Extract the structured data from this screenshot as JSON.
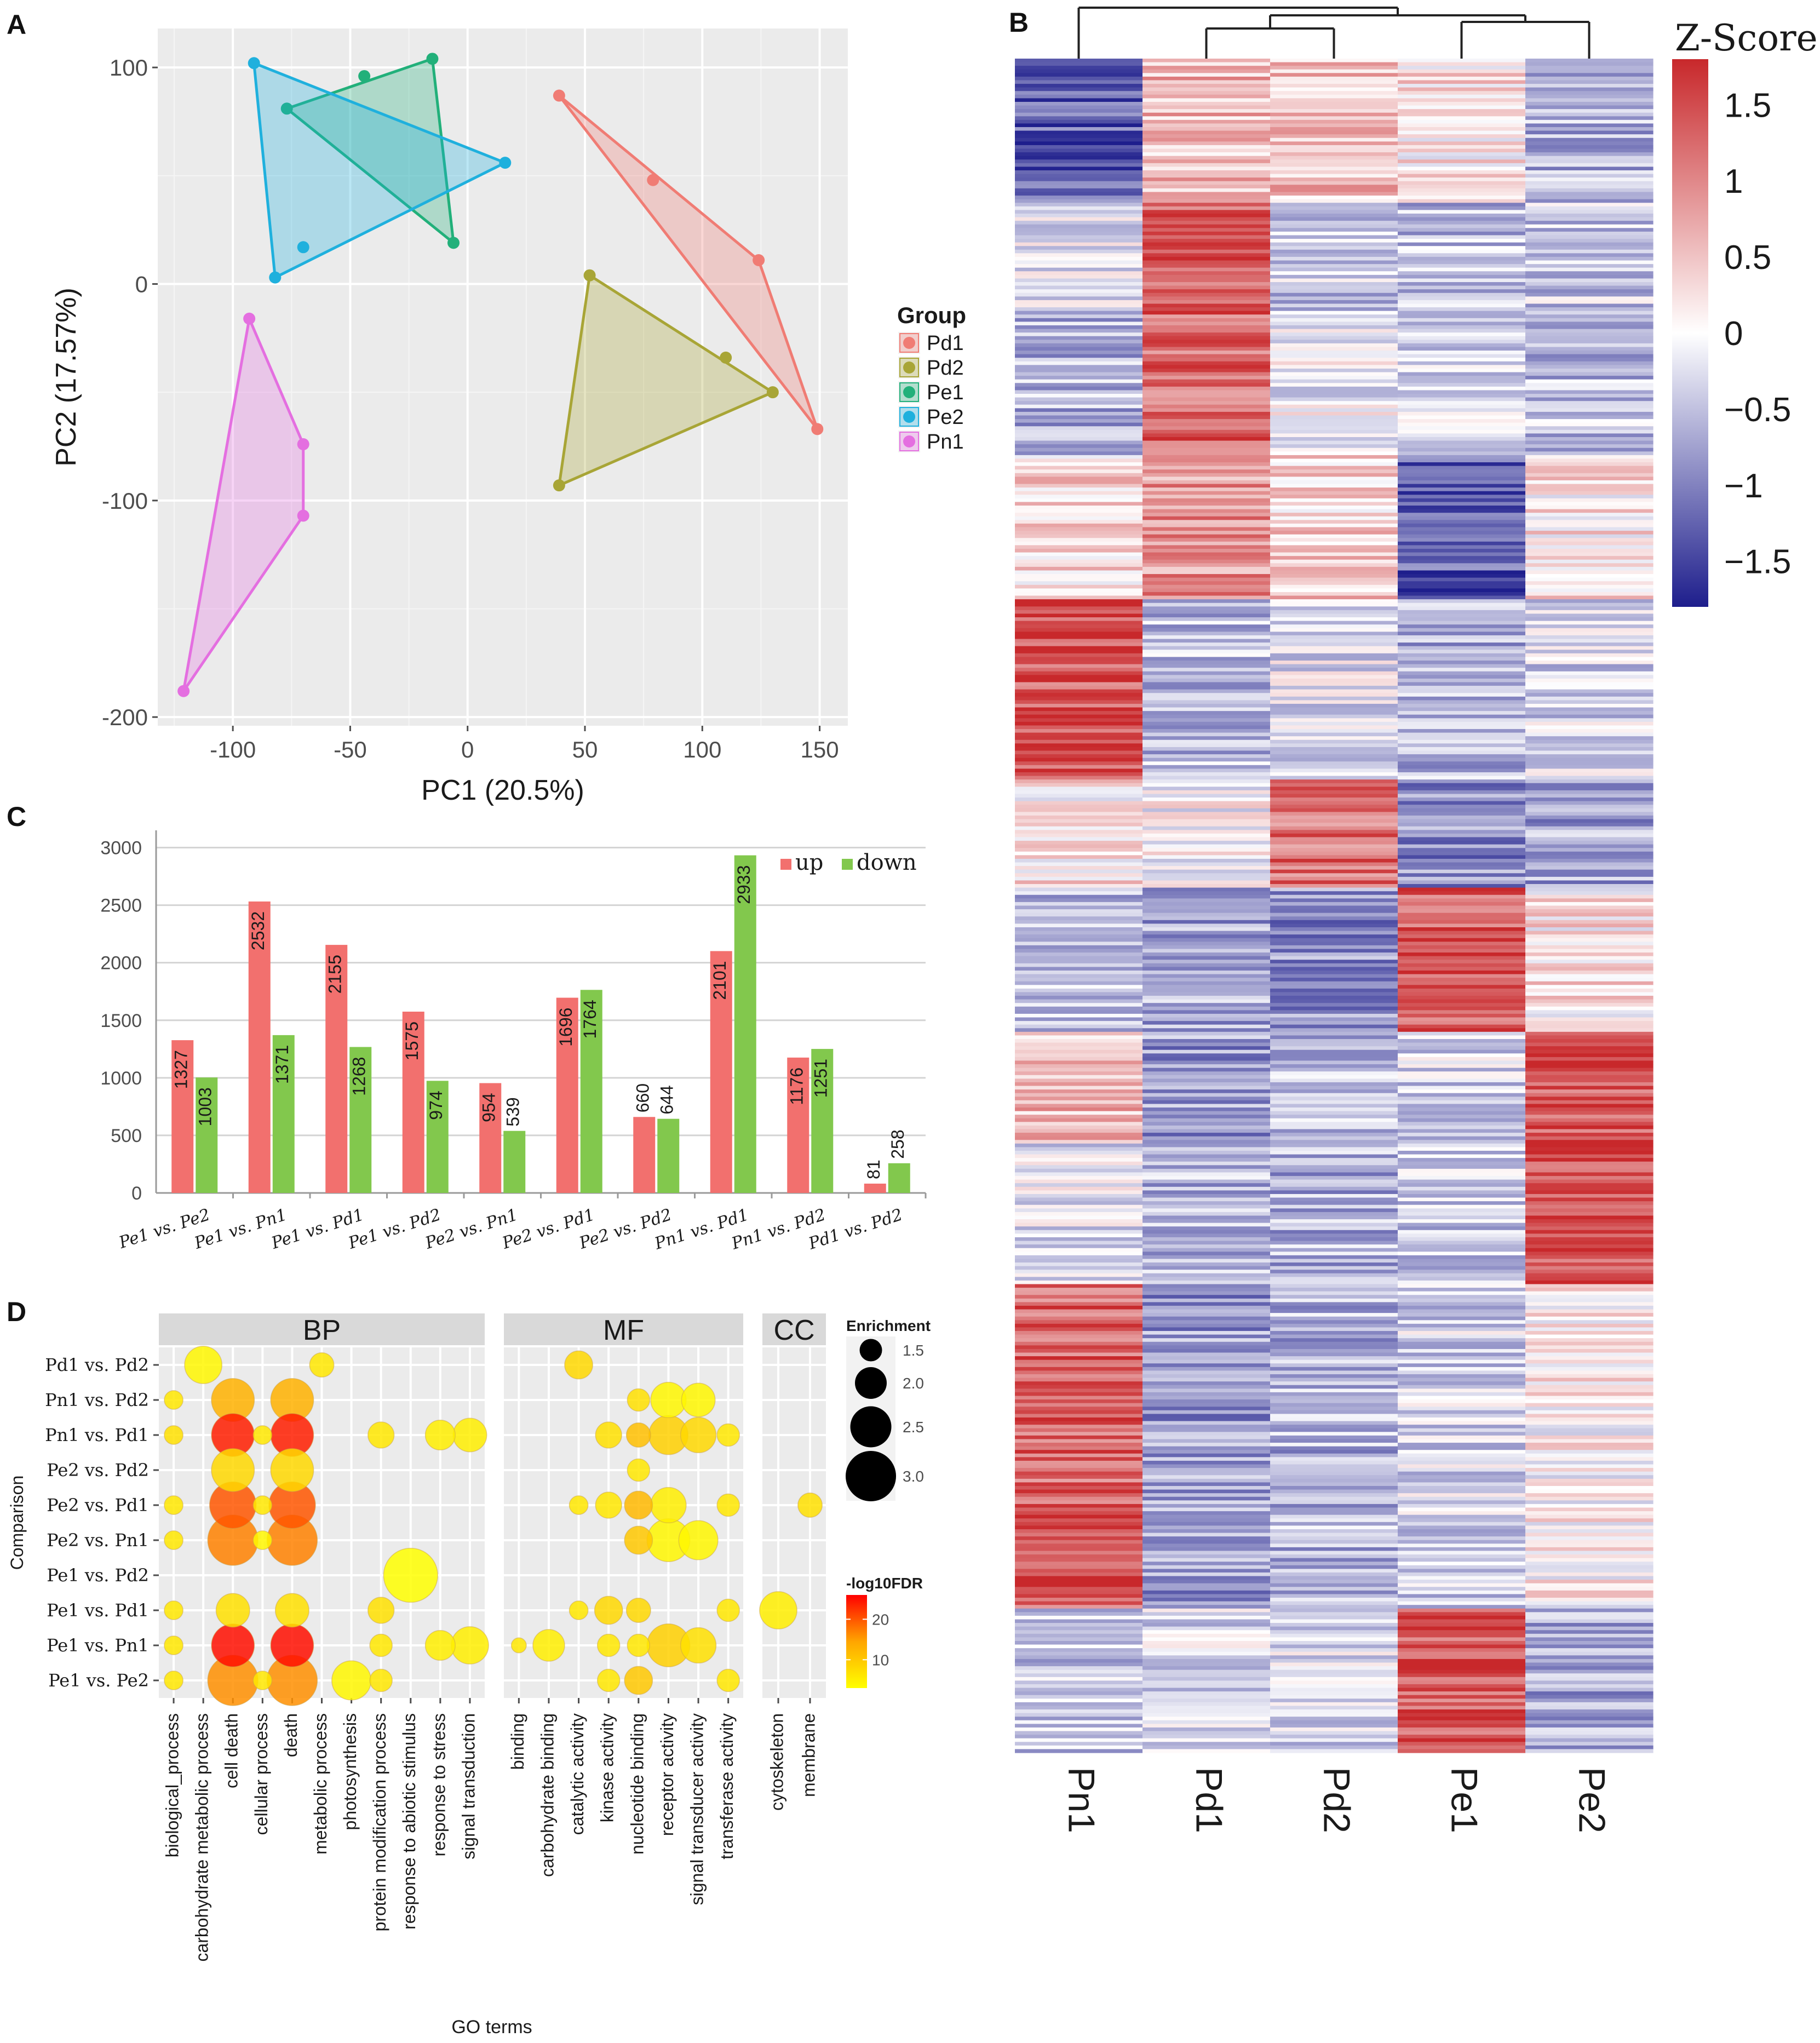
{
  "figure": {
    "panel_labels": [
      "A",
      "B",
      "C",
      "D"
    ]
  },
  "colors": {
    "Pd1": "#f07c74",
    "Pd2": "#a8a536",
    "Pe1": "#22b07a",
    "Pe2": "#1fb0dd",
    "Pn1": "#e46fe0",
    "up": "#f2706e",
    "down": "#82c84d",
    "heat_low": "#1e1e8c",
    "heat_mid": "#ffffff",
    "heat_high": "#c8282b",
    "grid_bg": "#ebebeb",
    "strip_bg": "#d9d9d9"
  },
  "chart_data": [
    {
      "id": "A",
      "type": "scatter",
      "xlabel": "PC1 (20.5%)",
      "ylabel": "PC2 (17.57%)",
      "xlim": [
        -132,
        162
      ],
      "ylim": [
        -204,
        118
      ],
      "xticks": [
        -100,
        -50,
        0,
        50,
        100,
        150
      ],
      "yticks": [
        -200,
        -100,
        0,
        100
      ],
      "xtick_labels": [
        "-100",
        "-50",
        "0",
        "50",
        "100",
        "150"
      ],
      "ytick_labels": [
        "-200",
        "-100",
        "0",
        "100"
      ],
      "legend_title": "Group",
      "legend_position": "right",
      "series": [
        {
          "name": "Pd1",
          "points": [
            [
              39,
              87
            ],
            [
              79,
              48
            ],
            [
              124,
              11
            ],
            [
              149,
              -67
            ]
          ],
          "hull": [
            [
              39,
              87
            ],
            [
              124,
              11
            ],
            [
              149,
              -67
            ]
          ]
        },
        {
          "name": "Pd2",
          "points": [
            [
              52,
              4
            ],
            [
              110,
              -34
            ],
            [
              130,
              -50
            ],
            [
              39,
              -93
            ]
          ],
          "hull": [
            [
              52,
              4
            ],
            [
              130,
              -50
            ],
            [
              39,
              -93
            ]
          ]
        },
        {
          "name": "Pe1",
          "points": [
            [
              -15,
              104
            ],
            [
              -44,
              96
            ],
            [
              -77,
              81
            ],
            [
              -6,
              19
            ]
          ],
          "hull": [
            [
              -15,
              104
            ],
            [
              -77,
              81
            ],
            [
              -6,
              19
            ]
          ]
        },
        {
          "name": "Pe2",
          "points": [
            [
              -91,
              102
            ],
            [
              16,
              56
            ],
            [
              -70,
              17
            ],
            [
              -82,
              3
            ]
          ],
          "hull": [
            [
              -91,
              102
            ],
            [
              16,
              56
            ],
            [
              -82,
              3
            ]
          ]
        },
        {
          "name": "Pn1",
          "points": [
            [
              -93,
              -16
            ],
            [
              -70,
              -74
            ],
            [
              -70,
              -107
            ],
            [
              -121,
              -188
            ]
          ],
          "hull": [
            [
              -93,
              -16
            ],
            [
              -70,
              -74
            ],
            [
              -70,
              -107
            ],
            [
              -121,
              -188
            ]
          ]
        }
      ]
    },
    {
      "id": "B",
      "type": "heatmap",
      "title": "Z-Score",
      "columns": [
        "Pn1",
        "Pd1",
        "Pd2",
        "Pe1",
        "Pe2"
      ],
      "colorbar_ticks": [
        1.5,
        1,
        0.5,
        0,
        -0.5,
        -1,
        -1.5
      ],
      "colorbar_tick_labels": [
        "1.5",
        "1",
        "0.5",
        "0",
        "−0.5",
        "−1",
        "−1.5"
      ],
      "colorbar_range": [
        -1.8,
        1.8
      ],
      "dendrogram": "((Pn1),((Pd1,Pd2),(Pe1,Pe2)))",
      "row_blocks": [
        {
          "rows": 40,
          "values": [
            -1.3,
            0.6,
            0.5,
            0.2,
            -0.6
          ]
        },
        {
          "rows": 30,
          "values": [
            -0.2,
            1.4,
            -0.4,
            -0.5,
            -0.4
          ]
        },
        {
          "rows": 40,
          "values": [
            -0.6,
            1.3,
            -0.1,
            -0.3,
            -0.5
          ]
        },
        {
          "rows": 40,
          "values": [
            0.3,
            0.9,
            0.4,
            -1.3,
            0.2
          ]
        },
        {
          "rows": 50,
          "values": [
            1.4,
            -0.5,
            -0.2,
            -0.6,
            -0.3
          ]
        },
        {
          "rows": 30,
          "values": [
            0.2,
            0.0,
            1.2,
            -0.9,
            -0.7
          ]
        },
        {
          "rows": 40,
          "values": [
            -0.5,
            -0.7,
            -0.9,
            1.4,
            0.2
          ]
        },
        {
          "rows": 30,
          "values": [
            0.6,
            -0.8,
            -0.5,
            -0.3,
            1.4
          ]
        },
        {
          "rows": 40,
          "values": [
            -0.2,
            -0.6,
            -0.6,
            -0.4,
            1.5
          ]
        },
        {
          "rows": 90,
          "values": [
            1.3,
            -0.8,
            -0.6,
            -0.3,
            0.1
          ]
        },
        {
          "rows": 40,
          "values": [
            -0.4,
            -0.3,
            -0.3,
            1.4,
            -0.7
          ]
        }
      ]
    },
    {
      "id": "C",
      "type": "bar",
      "categories": [
        "Pe1 vs. Pe2",
        "Pe1 vs. Pn1",
        "Pe1 vs. Pd1",
        "Pe1 vs. Pd2",
        "Pe2 vs. Pn1",
        "Pe2 vs. Pd1",
        "Pe2 vs. Pd2",
        "Pn1 vs. Pd1",
        "Pn1 vs. Pd2",
        "Pd1 vs. Pd2"
      ],
      "series": [
        {
          "name": "up",
          "values": [
            1327,
            2532,
            2155,
            1575,
            954,
            1696,
            660,
            2101,
            1176,
            81
          ]
        },
        {
          "name": "down",
          "values": [
            1003,
            1371,
            1268,
            974,
            539,
            1764,
            644,
            2933,
            1251,
            258
          ]
        }
      ],
      "ylim": [
        0,
        3150
      ],
      "yticks": [
        0,
        500,
        1000,
        1500,
        2000,
        2500,
        3000
      ],
      "ytick_labels": [
        "0",
        "500",
        "1000",
        "1500",
        "2000",
        "2500",
        "3000"
      ],
      "value_labels_up": [
        "1327",
        "2532",
        "2155",
        "1575",
        "954",
        "1696",
        "660",
        "2101",
        "1176",
        "81"
      ],
      "value_labels_down": [
        "1003",
        "1371",
        "1268",
        "974",
        "539",
        "1764",
        "644",
        "2933",
        "1251",
        "258"
      ],
      "legend_position": "top-right"
    },
    {
      "id": "D",
      "type": "scatter",
      "xlabel": "GO terms",
      "ylabel": "Comparison",
      "facets": [
        {
          "name": "BP",
          "terms": [
            "biological_process",
            "carbohydrate metabolic process",
            "cell death",
            "cellular process",
            "death",
            "metabolic process",
            "photosynthesis",
            "protein modification process",
            "response to abiotic stimulus",
            "response to stress",
            "signal transduction"
          ]
        },
        {
          "name": "MF",
          "terms": [
            "binding",
            "carbohydrate binding",
            "catalytic activity",
            "kinase activity",
            "nucleotide binding",
            "receptor activity",
            "signal transducer activity",
            "transferase activity"
          ]
        },
        {
          "name": "CC",
          "terms": [
            "cytoskeleton",
            "membrane"
          ]
        }
      ],
      "comparisons": [
        "Pd1 vs. Pd2",
        "Pn1 vs. Pd2",
        "Pn1 vs. Pd1",
        "Pe2 vs. Pd2",
        "Pe2 vs. Pd1",
        "Pe2 vs. Pn1",
        "Pe1 vs. Pd2",
        "Pe1 vs. Pd1",
        "Pe1 vs. Pn1",
        "Pe1 vs. Pe2"
      ],
      "size_legend_title": "Enrichment",
      "size_legend_values": [
        1.5,
        2.0,
        2.5,
        3.0
      ],
      "size_legend_labels": [
        "1.5",
        "2.0",
        "2.5",
        "3.0"
      ],
      "color_legend_title": "-log10FDR",
      "color_legend_ticks": [
        20,
        10
      ],
      "color_legend_labels": [
        "20",
        "10"
      ],
      "color_range": [
        3,
        26
      ],
      "points": [
        {
          "comp": "Pd1 vs. Pd2",
          "term": "carbohydrate metabolic process",
          "enrich": 2.3,
          "fdr": 4
        },
        {
          "comp": "Pd1 vs. Pd2",
          "term": "metabolic process",
          "enrich": 1.6,
          "fdr": 6
        },
        {
          "comp": "Pd1 vs. Pd2",
          "term": "catalytic activity",
          "enrich": 1.8,
          "fdr": 8
        },
        {
          "comp": "Pn1 vs. Pd2",
          "term": "biological_process",
          "enrich": 1.3,
          "fdr": 6
        },
        {
          "comp": "Pn1 vs. Pd2",
          "term": "cell death",
          "enrich": 2.6,
          "fdr": 13
        },
        {
          "comp": "Pn1 vs. Pd2",
          "term": "death",
          "enrich": 2.6,
          "fdr": 13
        },
        {
          "comp": "Pn1 vs. Pd2",
          "term": "nucleotide binding",
          "enrich": 1.5,
          "fdr": 7
        },
        {
          "comp": "Pn1 vs. Pd2",
          "term": "receptor activity",
          "enrich": 2.2,
          "fdr": 4
        },
        {
          "comp": "Pn1 vs. Pd2",
          "term": "signal transducer activity",
          "enrich": 2.1,
          "fdr": 4
        },
        {
          "comp": "Pn1 vs. Pd1",
          "term": "biological_process",
          "enrich": 1.3,
          "fdr": 7
        },
        {
          "comp": "Pn1 vs. Pd1",
          "term": "cell death",
          "enrich": 2.6,
          "fdr": 24
        },
        {
          "comp": "Pn1 vs. Pd1",
          "term": "cellular process",
          "enrich": 1.3,
          "fdr": 6
        },
        {
          "comp": "Pn1 vs. Pd1",
          "term": "death",
          "enrich": 2.6,
          "fdr": 24
        },
        {
          "comp": "Pn1 vs. Pd1",
          "term": "protein modification process",
          "enrich": 1.7,
          "fdr": 6
        },
        {
          "comp": "Pn1 vs. Pd1",
          "term": "response to stress",
          "enrich": 1.9,
          "fdr": 5
        },
        {
          "comp": "Pn1 vs. Pd1",
          "term": "signal transduction",
          "enrich": 2.1,
          "fdr": 5
        },
        {
          "comp": "Pn1 vs. Pd1",
          "term": "kinase activity",
          "enrich": 1.7,
          "fdr": 7
        },
        {
          "comp": "Pn1 vs. Pd1",
          "term": "nucleotide binding",
          "enrich": 1.6,
          "fdr": 11
        },
        {
          "comp": "Pn1 vs. Pd1",
          "term": "receptor activity",
          "enrich": 2.4,
          "fdr": 9
        },
        {
          "comp": "Pn1 vs. Pd1",
          "term": "signal transducer activity",
          "enrich": 2.2,
          "fdr": 8
        },
        {
          "comp": "Pn1 vs. Pd1",
          "term": "transferase activity",
          "enrich": 1.5,
          "fdr": 6
        },
        {
          "comp": "Pe2 vs. Pd2",
          "term": "cell death",
          "enrich": 2.6,
          "fdr": 8
        },
        {
          "comp": "Pe2 vs. Pd2",
          "term": "death",
          "enrich": 2.6,
          "fdr": 8
        },
        {
          "comp": "Pe2 vs. Pd2",
          "term": "nucleotide binding",
          "enrich": 1.5,
          "fdr": 6
        },
        {
          "comp": "Pe2 vs. Pd1",
          "term": "biological_process",
          "enrich": 1.3,
          "fdr": 6
        },
        {
          "comp": "Pe2 vs. Pd1",
          "term": "cell death",
          "enrich": 2.8,
          "fdr": 20
        },
        {
          "comp": "Pe2 vs. Pd1",
          "term": "cellular process",
          "enrich": 1.3,
          "fdr": 6
        },
        {
          "comp": "Pe2 vs. Pd1",
          "term": "death",
          "enrich": 2.8,
          "fdr": 20
        },
        {
          "comp": "Pe2 vs. Pd1",
          "term": "catalytic activity",
          "enrich": 1.3,
          "fdr": 6
        },
        {
          "comp": "Pe2 vs. Pd1",
          "term": "kinase activity",
          "enrich": 1.7,
          "fdr": 6
        },
        {
          "comp": "Pe2 vs. Pd1",
          "term": "nucleotide binding",
          "enrich": 1.8,
          "fdr": 12
        },
        {
          "comp": "Pe2 vs. Pd1",
          "term": "receptor activity",
          "enrich": 2.2,
          "fdr": 5
        },
        {
          "comp": "Pe2 vs. Pd1",
          "term": "transferase activity",
          "enrich": 1.5,
          "fdr": 6
        },
        {
          "comp": "Pe2 vs. Pd1",
          "term": "membrane",
          "enrich": 1.6,
          "fdr": 7
        },
        {
          "comp": "Pe2 vs. Pn1",
          "term": "biological_process",
          "enrich": 1.3,
          "fdr": 6
        },
        {
          "comp": "Pe2 vs. Pn1",
          "term": "cell death",
          "enrich": 3.0,
          "fdr": 17
        },
        {
          "comp": "Pe2 vs. Pn1",
          "term": "cellular process",
          "enrich": 1.3,
          "fdr": 4
        },
        {
          "comp": "Pe2 vs. Pn1",
          "term": "death",
          "enrich": 3.0,
          "fdr": 17
        },
        {
          "comp": "Pe2 vs. Pn1",
          "term": "nucleotide binding",
          "enrich": 1.8,
          "fdr": 10
        },
        {
          "comp": "Pe2 vs. Pn1",
          "term": "receptor activity",
          "enrich": 2.6,
          "fdr": 4
        },
        {
          "comp": "Pe2 vs. Pn1",
          "term": "signal transducer activity",
          "enrich": 2.4,
          "fdr": 4
        },
        {
          "comp": "Pe1 vs. Pd2",
          "term": "response to abiotic stimulus",
          "enrich": 3.2,
          "fdr": 3
        },
        {
          "comp": "Pe1 vs. Pd1",
          "term": "biological_process",
          "enrich": 1.3,
          "fdr": 6
        },
        {
          "comp": "Pe1 vs. Pd1",
          "term": "cell death",
          "enrich": 2.1,
          "fdr": 7
        },
        {
          "comp": "Pe1 vs. Pd1",
          "term": "death",
          "enrich": 2.1,
          "fdr": 7
        },
        {
          "comp": "Pe1 vs. Pd1",
          "term": "protein modification process",
          "enrich": 1.7,
          "fdr": 7
        },
        {
          "comp": "Pe1 vs. Pd1",
          "term": "catalytic activity",
          "enrich": 1.3,
          "fdr": 6
        },
        {
          "comp": "Pe1 vs. Pd1",
          "term": "kinase activity",
          "enrich": 1.8,
          "fdr": 8
        },
        {
          "comp": "Pe1 vs. Pd1",
          "term": "nucleotide binding",
          "enrich": 1.6,
          "fdr": 8
        },
        {
          "comp": "Pe1 vs. Pd1",
          "term": "transferase activity",
          "enrich": 1.5,
          "fdr": 6
        },
        {
          "comp": "Pe1 vs. Pd1",
          "term": "cytoskeleton",
          "enrich": 2.3,
          "fdr": 5
        },
        {
          "comp": "Pe1 vs. Pn1",
          "term": "biological_process",
          "enrich": 1.3,
          "fdr": 6
        },
        {
          "comp": "Pe1 vs. Pn1",
          "term": "cell death",
          "enrich": 2.6,
          "fdr": 25
        },
        {
          "comp": "Pe1 vs. Pn1",
          "term": "death",
          "enrich": 2.6,
          "fdr": 25
        },
        {
          "comp": "Pe1 vs. Pn1",
          "term": "protein modification process",
          "enrich": 1.5,
          "fdr": 6
        },
        {
          "comp": "Pe1 vs. Pn1",
          "term": "response to stress",
          "enrich": 1.9,
          "fdr": 5
        },
        {
          "comp": "Pe1 vs. Pn1",
          "term": "signal transduction",
          "enrich": 2.3,
          "fdr": 5
        },
        {
          "comp": "Pe1 vs. Pn1",
          "term": "binding",
          "enrich": 1.1,
          "fdr": 6
        },
        {
          "comp": "Pe1 vs. Pn1",
          "term": "carbohydrate binding",
          "enrich": 2.0,
          "fdr": 5
        },
        {
          "comp": "Pe1 vs. Pn1",
          "term": "kinase activity",
          "enrich": 1.5,
          "fdr": 6
        },
        {
          "comp": "Pe1 vs. Pn1",
          "term": "nucleotide binding",
          "enrich": 1.5,
          "fdr": 6
        },
        {
          "comp": "Pe1 vs. Pn1",
          "term": "receptor activity",
          "enrich": 2.6,
          "fdr": 9
        },
        {
          "comp": "Pe1 vs. Pn1",
          "term": "signal transducer activity",
          "enrich": 2.2,
          "fdr": 7
        },
        {
          "comp": "Pe1 vs. Pe2",
          "term": "biological_process",
          "enrich": 1.3,
          "fdr": 6
        },
        {
          "comp": "Pe1 vs. Pe2",
          "term": "cell death",
          "enrich": 3.0,
          "fdr": 16
        },
        {
          "comp": "Pe1 vs. Pe2",
          "term": "cellular process",
          "enrich": 1.3,
          "fdr": 6
        },
        {
          "comp": "Pe1 vs. Pe2",
          "term": "death",
          "enrich": 3.0,
          "fdr": 16
        },
        {
          "comp": "Pe1 vs. Pe2",
          "term": "photosynthesis",
          "enrich": 2.4,
          "fdr": 4
        },
        {
          "comp": "Pe1 vs. Pe2",
          "term": "protein modification process",
          "enrich": 1.5,
          "fdr": 6
        },
        {
          "comp": "Pe1 vs. Pe2",
          "term": "kinase activity",
          "enrich": 1.5,
          "fdr": 6
        },
        {
          "comp": "Pe1 vs. Pe2",
          "term": "nucleotide binding",
          "enrich": 1.8,
          "fdr": 10
        },
        {
          "comp": "Pe1 vs. Pe2",
          "term": "transferase activity",
          "enrich": 1.5,
          "fdr": 6
        }
      ]
    }
  ]
}
